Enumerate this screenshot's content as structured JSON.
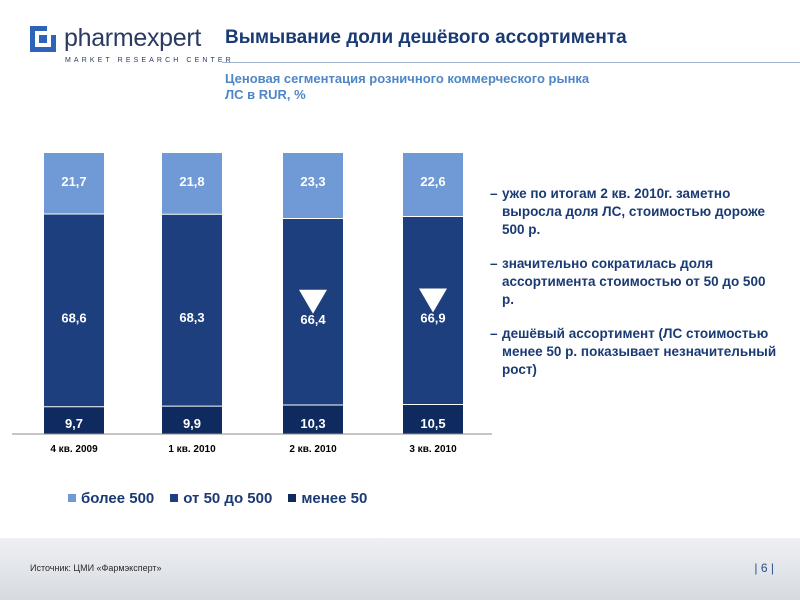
{
  "logo": {
    "name": "pharmexpert",
    "tagline": "MARKET RESEARCH CENTER"
  },
  "title": "Вымывание доли дешёвого ассортимента",
  "subtitle": "Ценовая сегментация розничного коммерческого рынка ЛС в RUR, %",
  "colors": {
    "more_500": "#6f9ad6",
    "from_50_to_500": "#1d3f7d",
    "less_50": "#0e2a5e",
    "title": "#1a3a73",
    "subtitle": "#4f86c6"
  },
  "chart_data": {
    "type": "bar",
    "stacked": true,
    "title": "Ценовая сегментация розничного коммерческого рынка ЛС в RUR, %",
    "categories": [
      "4 кв. 2009",
      "1 кв. 2010",
      "2 кв. 2010",
      "3 кв. 2010"
    ],
    "series": [
      {
        "name": "менее 50",
        "values": [
          9.7,
          9.9,
          10.3,
          10.5
        ],
        "labels": [
          "9,7",
          "9,9",
          "10,3",
          "10,5"
        ]
      },
      {
        "name": "от 50 до 500",
        "values": [
          68.6,
          68.3,
          66.4,
          66.9
        ],
        "labels": [
          "68,6",
          "68,3",
          "66,4",
          "66,9"
        ]
      },
      {
        "name": "более 500",
        "values": [
          21.7,
          21.8,
          23.3,
          22.6
        ],
        "labels": [
          "21,7",
          "21,8",
          "23,3",
          "22,6"
        ]
      }
    ],
    "annotations": [
      {
        "category": "2 кв. 2010",
        "series": "от 50 до 500",
        "marker": "down-triangle"
      },
      {
        "category": "3 кв. 2010",
        "series": "от 50 до 500",
        "marker": "down-triangle"
      }
    ],
    "ylim": [
      0,
      100
    ],
    "xlabel": "",
    "ylabel": "",
    "grid": false
  },
  "legend": [
    {
      "label": "более 500",
      "color": "#6f9ad6"
    },
    {
      "label": "от 50 до 500",
      "color": "#1d3f7d"
    },
    {
      "label": "менее 50",
      "color": "#0e2a5e"
    }
  ],
  "notes": [
    {
      "dash": "–",
      "text": "уже по итогам 2 кв. 2010г. заметно выросла доля ЛС, стоимостью дороже 500 р."
    },
    {
      "dash": "–",
      "text": "значительно сократилась доля ассортимента стоимостью от 50 до 500 р."
    },
    {
      "dash": "–",
      "text": "дешёвый ассортимент (ЛС стоимостью менее 50 р. показывает незначительный рост)"
    }
  ],
  "footer": {
    "source": "Источник: ЦМИ «Фармэксперт»",
    "page": "| 6 |"
  }
}
